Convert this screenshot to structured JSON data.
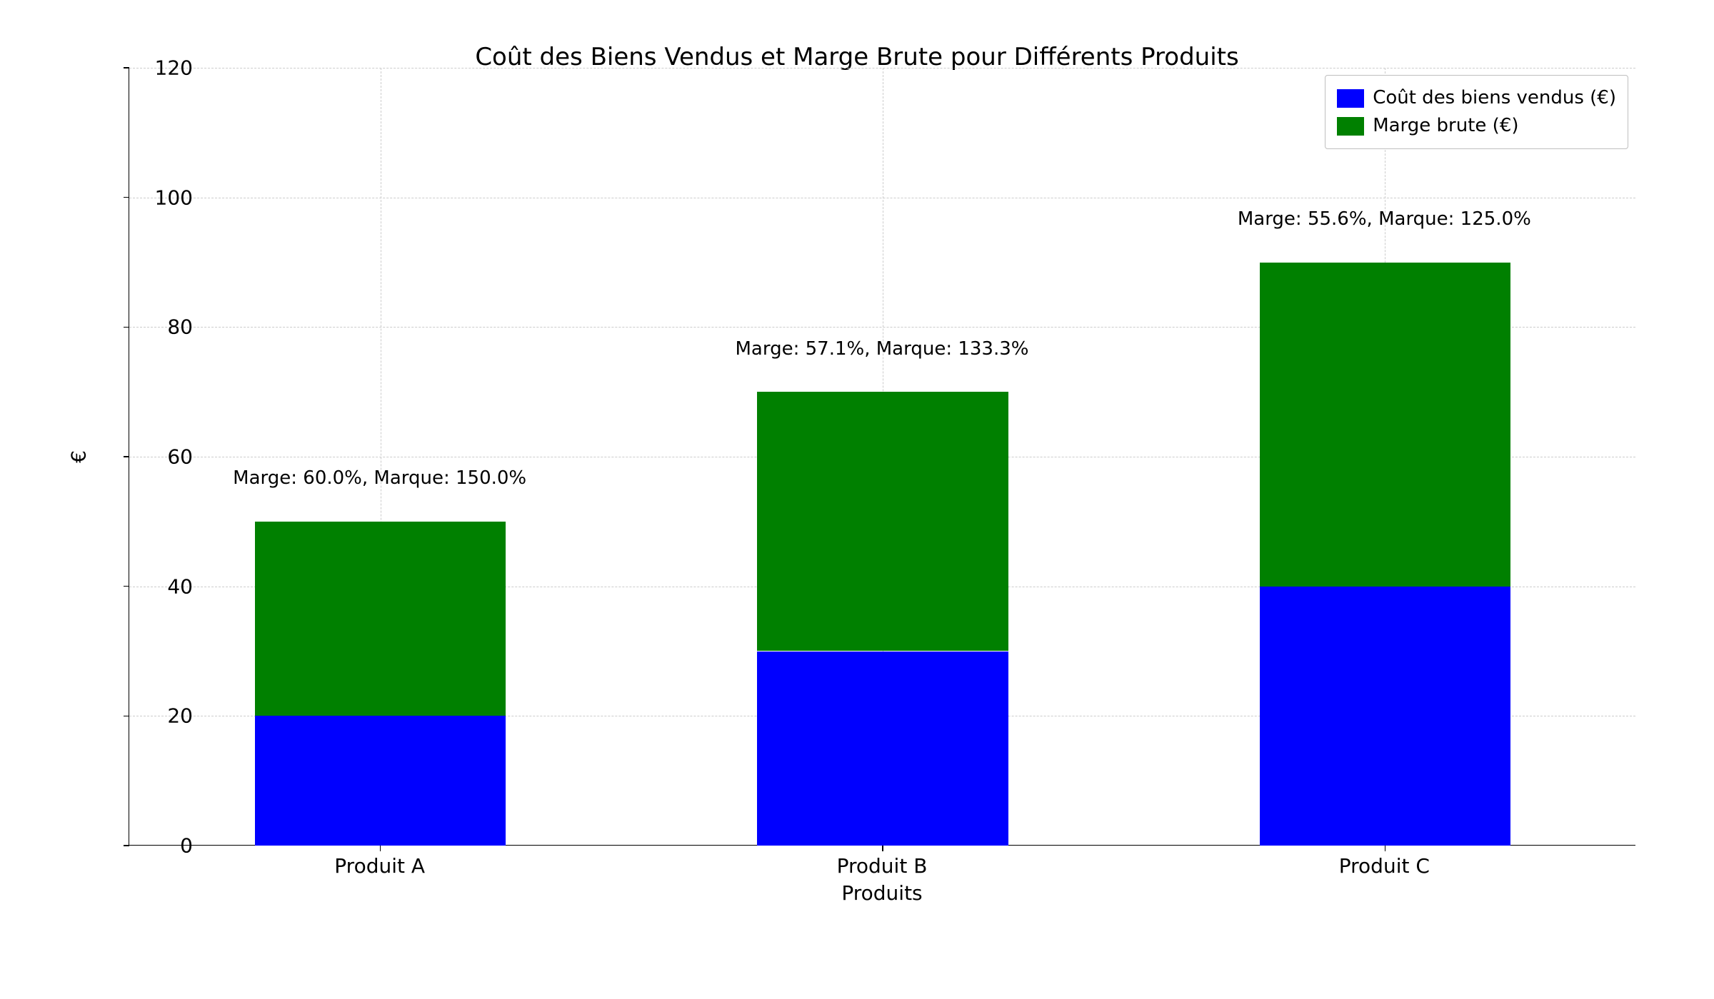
{
  "chart": {
    "type": "stacked-bar",
    "title": "Coût des Biens Vendus et Marge Brute pour Différents Produits",
    "title_fontsize": 34,
    "xlabel": "Produits",
    "ylabel": "€",
    "label_fontsize": 28,
    "tick_fontsize": 28,
    "annotation_fontsize": 26,
    "legend_fontsize": 26,
    "background_color": "#ffffff",
    "grid_color": "#cccccc",
    "axis_color": "#000000",
    "ylim": [
      0,
      120
    ],
    "yticks": [
      0,
      20,
      40,
      60,
      80,
      100,
      120
    ],
    "categories": [
      "Produit A",
      "Produit B",
      "Produit C"
    ],
    "series": [
      {
        "name": "Coût des biens vendus (€)",
        "color": "#0000ff",
        "values": [
          20,
          30,
          40
        ]
      },
      {
        "name": "Marge brute (€)",
        "color": "#008000",
        "values": [
          30,
          40,
          50
        ]
      }
    ],
    "totals": [
      50,
      70,
      90
    ],
    "bar_width": 0.5,
    "x_positions": [
      0,
      1,
      2
    ],
    "x_range": [
      -0.5,
      2.5
    ],
    "annotations": [
      "Marge: 60.0%, Marque: 150.0%",
      "Marge: 57.1%, Marque: 133.3%",
      "Marge: 55.6%, Marque: 125.0%"
    ],
    "annotation_offset": 5,
    "legend_position": "upper-right"
  }
}
